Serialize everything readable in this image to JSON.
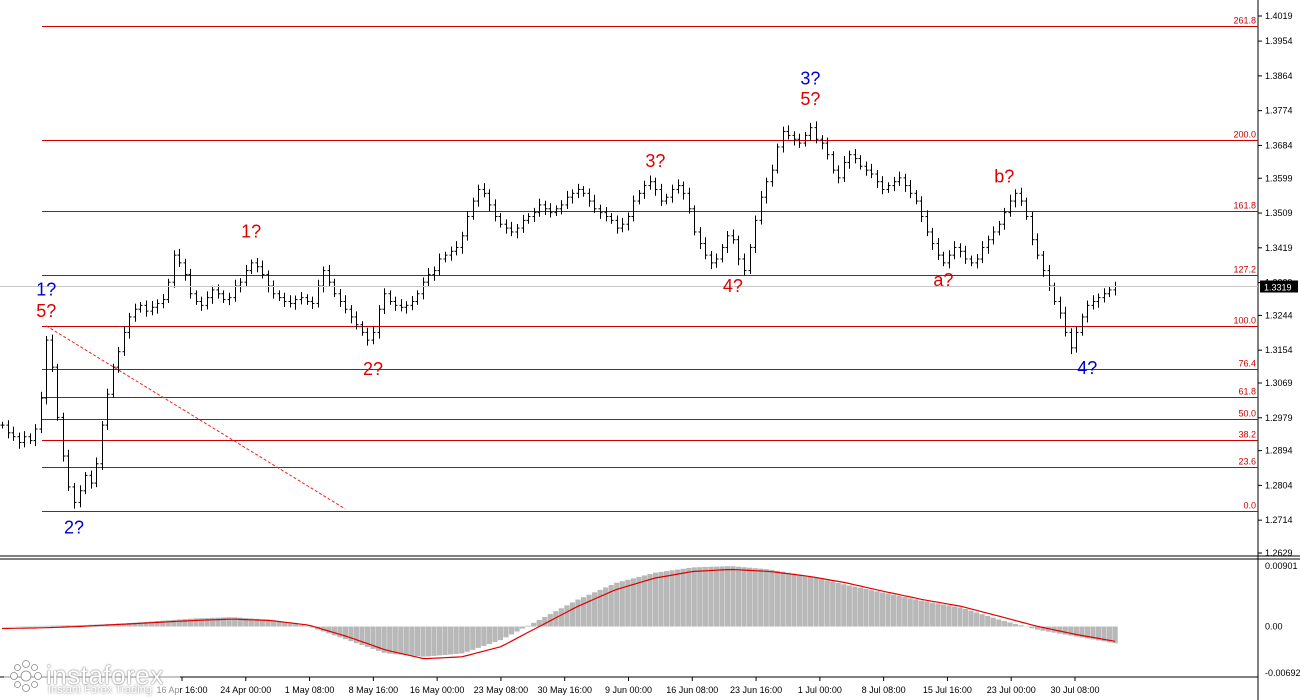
{
  "watermark": {
    "brand": "instaforex",
    "tagline": "Instant Forex Trading"
  },
  "chart_data": [
    {
      "type": "line",
      "chart_kind": "price chart (bars) with Fibonacci levels and wave labels",
      "ylim": [
        1.2629,
        1.4019
      ],
      "y_ticks": [
        "1.4019",
        "1.3954",
        "1.3864",
        "1.3774",
        "1.3684",
        "1.3599",
        "1.3509",
        "1.3419",
        "1.3329",
        "1.3244",
        "1.3154",
        "1.3069",
        "1.2979",
        "1.2894",
        "1.2804",
        "1.2714",
        "1.2629"
      ],
      "current_price": "1.3319",
      "x_labels": [
        "16 Apr 16:00",
        "24 Apr 00:00",
        "1 May 08:00",
        "8 May 16:00",
        "16 May 00:00",
        "23 May 08:00",
        "30 May 16:00",
        "9 Jun 00:00",
        "16 Jun 08:00",
        "23 Jun 16:00",
        "1 Jul 00:00",
        "8 Jul 08:00",
        "15 Jul 16:00",
        "23 Jul 00:00",
        "30 Jul 08:00"
      ],
      "fib_levels": [
        {
          "label": "261.8",
          "price": 1.3994
        },
        {
          "label": "200.0",
          "price": 1.3698
        },
        {
          "label": "161.8",
          "price": 1.3515
        },
        {
          "label": "127.2",
          "price": 1.3349
        },
        {
          "label": "100.0",
          "price": 1.3217
        },
        {
          "label": "76.4",
          "price": 1.3104
        },
        {
          "label": "61.8",
          "price": 1.3034
        },
        {
          "label": "50.0",
          "price": 1.2977
        },
        {
          "label": "38.2",
          "price": 1.2921
        },
        {
          "label": "23.6",
          "price": 1.2851
        },
        {
          "label": "0.0",
          "price": 1.2737
        }
      ],
      "wave_labels": [
        {
          "text": "1?",
          "color": "#0000cc",
          "i": 8,
          "price": 1.3296
        },
        {
          "text": "5?",
          "color": "#dd0000",
          "i": 8,
          "price": 1.324
        },
        {
          "text": "2?",
          "color": "#0000cc",
          "i": 13,
          "price": 1.268
        },
        {
          "text": "1?",
          "color": "#dd0000",
          "i": 45,
          "price": 1.3446
        },
        {
          "text": "2?",
          "color": "#dd0000",
          "i": 67,
          "price": 1.309
        },
        {
          "text": "3?",
          "color": "#dd0000",
          "i": 118,
          "price": 1.3628
        },
        {
          "text": "4?",
          "color": "#dd0000",
          "i": 132,
          "price": 1.3305
        },
        {
          "text": "3?",
          "color": "#0000cc",
          "i": 146,
          "price": 1.3842
        },
        {
          "text": "5?",
          "color": "#dd0000",
          "i": 146,
          "price": 1.3789
        },
        {
          "text": "b?",
          "color": "#dd0000",
          "i": 181,
          "price": 1.3588
        },
        {
          "text": "a?",
          "color": "#dd0000",
          "i": 170,
          "price": 1.332
        },
        {
          "text": "4?",
          "color": "#0000cc",
          "i": 196,
          "price": 1.3092
        }
      ],
      "trendline": {
        "from": {
          "i": 8,
          "price": 1.3217
        },
        "to": {
          "i": 62,
          "price": 1.2743
        }
      },
      "series": [
        {
          "values": [
            1.296,
            1.294,
            1.293,
            1.2915,
            1.293,
            1.292,
            1.295,
            1.303,
            1.318,
            1.311,
            1.298,
            1.288,
            1.28,
            1.276,
            1.279,
            1.283,
            1.281,
            1.286,
            1.296,
            1.304,
            1.311,
            1.315,
            1.32,
            1.324,
            1.326,
            1.327,
            1.3255,
            1.3265,
            1.3275,
            1.3285,
            1.333,
            1.34,
            1.338,
            1.335,
            1.33,
            1.328,
            1.327,
            1.329,
            1.331,
            1.33,
            1.3285,
            1.329,
            1.332,
            1.333,
            1.336,
            1.338,
            1.337,
            1.335,
            1.332,
            1.33,
            1.329,
            1.328,
            1.3275,
            1.3285,
            1.329,
            1.328,
            1.3275,
            1.332,
            1.336,
            1.333,
            1.33,
            1.328,
            1.326,
            1.324,
            1.322,
            1.32,
            1.318,
            1.32,
            1.326,
            1.33,
            1.328,
            1.327,
            1.3265,
            1.327,
            1.328,
            1.33,
            1.333,
            1.335,
            1.336,
            1.339,
            1.34,
            1.341,
            1.342,
            1.345,
            1.35,
            1.354,
            1.357,
            1.356,
            1.353,
            1.35,
            1.348,
            1.347,
            1.346,
            1.347,
            1.349,
            1.35,
            1.351,
            1.353,
            1.352,
            1.351,
            1.352,
            1.353,
            1.355,
            1.356,
            1.357,
            1.356,
            1.354,
            1.352,
            1.351,
            1.35,
            1.349,
            1.347,
            1.348,
            1.35,
            1.354,
            1.356,
            1.358,
            1.359,
            1.357,
            1.354,
            1.355,
            1.357,
            1.358,
            1.356,
            1.352,
            1.346,
            1.343,
            1.34,
            1.338,
            1.339,
            1.342,
            1.345,
            1.344,
            1.339,
            1.336,
            1.342,
            1.349,
            1.355,
            1.359,
            1.362,
            1.368,
            1.372,
            1.371,
            1.37,
            1.369,
            1.371,
            1.373,
            1.37,
            1.369,
            1.366,
            1.362,
            1.36,
            1.364,
            1.366,
            1.365,
            1.363,
            1.362,
            1.361,
            1.359,
            1.357,
            1.358,
            1.359,
            1.36,
            1.358,
            1.356,
            1.354,
            1.35,
            1.346,
            1.343,
            1.34,
            1.338,
            1.34,
            1.342,
            1.341,
            1.339,
            1.338,
            1.339,
            1.342,
            1.344,
            1.346,
            1.348,
            1.351,
            1.354,
            1.356,
            1.354,
            1.35,
            1.344,
            1.34,
            1.336,
            1.332,
            1.328,
            1.325,
            1.32,
            1.316,
            1.32,
            1.324,
            1.327,
            1.328,
            1.329,
            1.33,
            1.331,
            1.3319
          ]
        }
      ]
    },
    {
      "type": "area",
      "chart_kind": "oscillator histogram with signal line",
      "ylim": [
        -0.00692,
        0.00901
      ],
      "y_ticks": [
        "0.00901",
        "0.00",
        "-0.00692"
      ],
      "x_labels": [
        "16 Apr 16:00",
        "24 Apr 00:00",
        "1 May 08:00",
        "8 May 16:00",
        "16 May 00:00",
        "23 May 08:00",
        "30 May 16:00",
        "9 Jun 00:00",
        "16 Jun 08:00",
        "23 Jun 16:00",
        "1 Jul 00:00",
        "8 Jul 08:00",
        "15 Jul 16:00",
        "23 Jul 00:00",
        "30 Jul 08:00"
      ],
      "series": [
        {
          "name": "histogram",
          "values": [
            0.0,
            0.0001,
            0.0002,
            0.0004,
            0.0008,
            0.0012,
            0.0014,
            0.001,
            0.0,
            -0.002,
            -0.004,
            -0.0045,
            -0.004,
            -0.002,
            0.001,
            0.004,
            0.0065,
            0.008,
            0.0088,
            0.009,
            0.0085,
            0.0075,
            0.0062,
            0.005,
            0.0038,
            0.0028,
            0.001,
            -0.0005,
            -0.0015,
            -0.0025
          ]
        },
        {
          "name": "signal",
          "values": [
            -0.0003,
            -0.0002,
            0.0,
            0.0003,
            0.0006,
            0.0009,
            0.0011,
            0.0009,
            0.0002,
            -0.0015,
            -0.0035,
            -0.0048,
            -0.0045,
            -0.003,
            0.0,
            0.003,
            0.0055,
            0.0072,
            0.0082,
            0.0085,
            0.0082,
            0.0075,
            0.0065,
            0.0052,
            0.004,
            0.003,
            0.0015,
            0.0,
            -0.0012,
            -0.0022
          ]
        }
      ]
    }
  ]
}
